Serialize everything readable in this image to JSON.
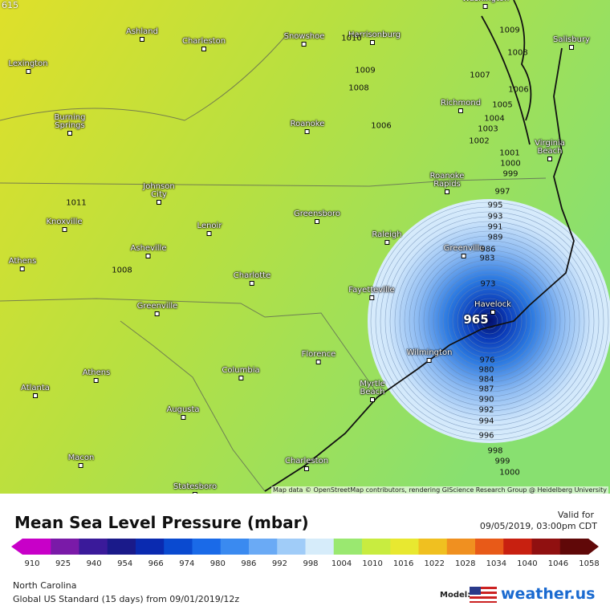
{
  "map": {
    "corner_label": "615",
    "cities": [
      "Washington",
      "Ashland",
      "Charleston",
      "Snowshoe",
      "Harrisonburg",
      "Salisbury",
      "Lexington",
      "Burning Springs",
      "Roanoke",
      "Richmond",
      "Virginia Beach",
      "Roanoke Rapids",
      "Johnson City",
      "Knoxville",
      "Greensboro",
      "Lenoir",
      "Raleigh",
      "Asheville",
      "Athens",
      "Greenville",
      "Charlotte",
      "Fayetteville",
      "Havelock",
      "Greenville",
      "Wilmington",
      "Florence",
      "Athens",
      "Columbia",
      "Myrtle Beach",
      "Atlanta",
      "Augusta",
      "Macon",
      "Charleston",
      "Statesboro"
    ],
    "isobar_labels": [
      1010,
      1009,
      1008,
      1009,
      1008,
      1007,
      1006,
      1005,
      1006,
      1004,
      1003,
      1002,
      1001,
      1000,
      999,
      997,
      995,
      993,
      991,
      989,
      986,
      983,
      973,
      976,
      980,
      984,
      987,
      990,
      992,
      994,
      996,
      998,
      999,
      1000,
      1011,
      1008
    ],
    "center_label": 965,
    "attribution": "Map data © OpenStreetMap contributors, rendering GIScience Research Group @ Heidelberg University"
  },
  "footer": {
    "title": "Mean Sea Level Pressure (mbar)",
    "valid_label": "Valid for",
    "valid_time": "09/05/2019, 03:00pm CDT",
    "region": "North Carolina",
    "model_run": "Global US Standard (15 days) from 09/01/2019/12z",
    "model_label": "Model:",
    "brand": "weather.us"
  },
  "colorbar": {
    "ticks": [
      910,
      925,
      940,
      954,
      966,
      974,
      980,
      986,
      992,
      998,
      1004,
      1010,
      1016,
      1022,
      1028,
      1034,
      1040,
      1046,
      1058
    ],
    "colors": [
      "#c800c8",
      "#7a1aa8",
      "#3a1a9a",
      "#1a1a8a",
      "#0a2ab0",
      "#0a4ad0",
      "#1a6ae8",
      "#3a8af0",
      "#6aaaf5",
      "#a0ccf8",
      "#d6ecfa",
      "#9ae870",
      "#c8ec40",
      "#e8e830",
      "#f0c020",
      "#f09020",
      "#e85a18",
      "#c82010",
      "#901010",
      "#600808"
    ]
  }
}
